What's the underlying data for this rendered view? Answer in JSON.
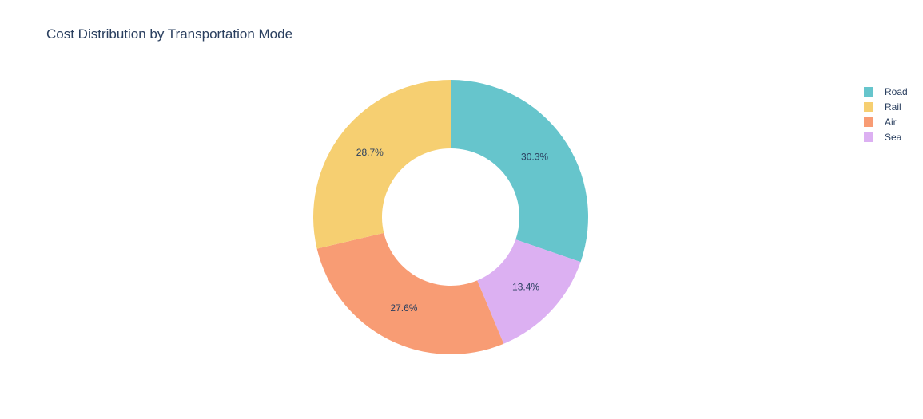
{
  "chart_data": {
    "type": "pie",
    "subtype": "donut",
    "title": "Cost Distribution by Transportation Mode",
    "categories": [
      "Road",
      "Rail",
      "Air",
      "Sea"
    ],
    "values": [
      30.3,
      28.7,
      27.6,
      13.4
    ],
    "labels": [
      "30.3%",
      "28.7%",
      "27.6%",
      "13.4%"
    ],
    "slice_order": [
      "Road",
      "Sea",
      "Air",
      "Rail"
    ],
    "colors": {
      "Road": "#66C5CC",
      "Rail": "#F6CF71",
      "Air": "#F89C74",
      "Sea": "#DCB0F2"
    },
    "legend_position": "top-right"
  }
}
